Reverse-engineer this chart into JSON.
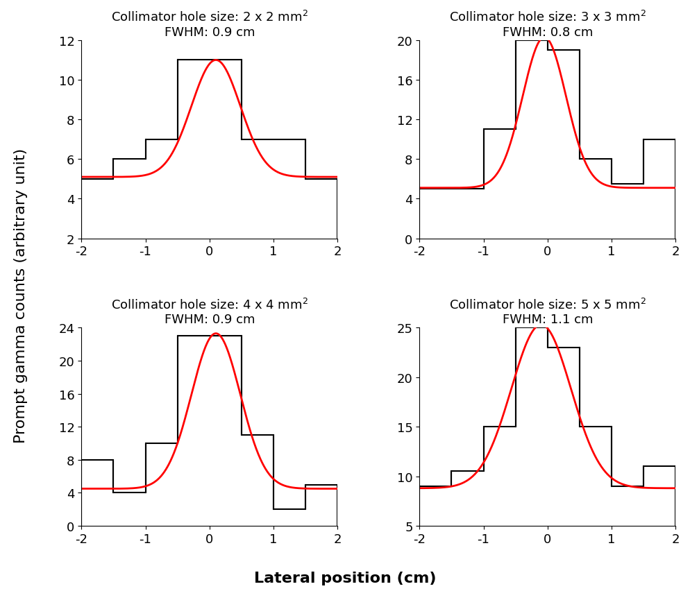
{
  "subplots": [
    {
      "title_line1": "Collimator hole size: 2 x 2 mm",
      "title_line2": "FWHM: 0.9 cm",
      "size_exp": "2",
      "ylim": [
        2,
        12
      ],
      "yticks": [
        2,
        4,
        6,
        8,
        10,
        12
      ],
      "fwhm": 0.9,
      "gauss_amp": 5.9,
      "gauss_mean": 0.1,
      "gauss_baseline": 5.1,
      "hist_edges": [
        -2.0,
        -1.5,
        -1.0,
        -0.5,
        0.0,
        0.5,
        1.0,
        1.5,
        2.0
      ],
      "hist_values": [
        5.0,
        6.0,
        7.0,
        11.0,
        11.0,
        7.0,
        7.0,
        5.0
      ]
    },
    {
      "title_line1": "Collimator hole size: 3 x 3 mm",
      "title_line2": "FWHM: 0.8 cm",
      "size_exp": "2",
      "ylim": [
        0,
        20
      ],
      "yticks": [
        0,
        4,
        8,
        12,
        16,
        20
      ],
      "fwhm": 0.8,
      "gauss_amp": 15.2,
      "gauss_mean": -0.05,
      "gauss_baseline": 5.1,
      "hist_edges": [
        -2.0,
        -1.5,
        -1.0,
        -0.5,
        0.0,
        0.5,
        1.0,
        1.5,
        2.0
      ],
      "hist_values": [
        5.0,
        5.0,
        11.0,
        20.0,
        19.0,
        8.0,
        5.5,
        10.0
      ]
    },
    {
      "title_line1": "Collimator hole size: 4 x 4 mm",
      "title_line2": "FWHM: 0.9 cm",
      "size_exp": "2",
      "ylim": [
        0,
        24
      ],
      "yticks": [
        0,
        4,
        8,
        12,
        16,
        20,
        24
      ],
      "fwhm": 0.9,
      "gauss_amp": 18.8,
      "gauss_mean": 0.1,
      "gauss_baseline": 4.5,
      "hist_edges": [
        -2.0,
        -1.5,
        -1.0,
        -0.5,
        0.0,
        0.5,
        1.0,
        1.5,
        2.0
      ],
      "hist_values": [
        8.0,
        4.0,
        10.0,
        23.0,
        23.0,
        11.0,
        2.0,
        5.0
      ]
    },
    {
      "title_line1": "Collimator hole size: 5 x 5 mm",
      "title_line2": "FWHM: 1.1 cm",
      "size_exp": "2",
      "ylim": [
        5,
        25
      ],
      "yticks": [
        5,
        10,
        15,
        20,
        25
      ],
      "fwhm": 1.1,
      "gauss_amp": 16.5,
      "gauss_mean": -0.1,
      "gauss_baseline": 8.8,
      "hist_edges": [
        -2.0,
        -1.5,
        -1.0,
        -0.5,
        0.0,
        0.5,
        1.0,
        1.5,
        2.0
      ],
      "hist_values": [
        9.0,
        10.5,
        15.0,
        25.0,
        23.0,
        15.0,
        9.0,
        11.0
      ]
    }
  ],
  "xlabel": "Lateral position (cm)",
  "ylabel": "Prompt gamma counts (arbitrary unit)",
  "xlim": [
    -2,
    2
  ],
  "xticks": [
    -2,
    -1,
    0,
    1,
    2
  ],
  "hist_color": "#000000",
  "fit_color": "#ff0000",
  "title_fontsize": 13,
  "label_fontsize": 16,
  "tick_fontsize": 13
}
